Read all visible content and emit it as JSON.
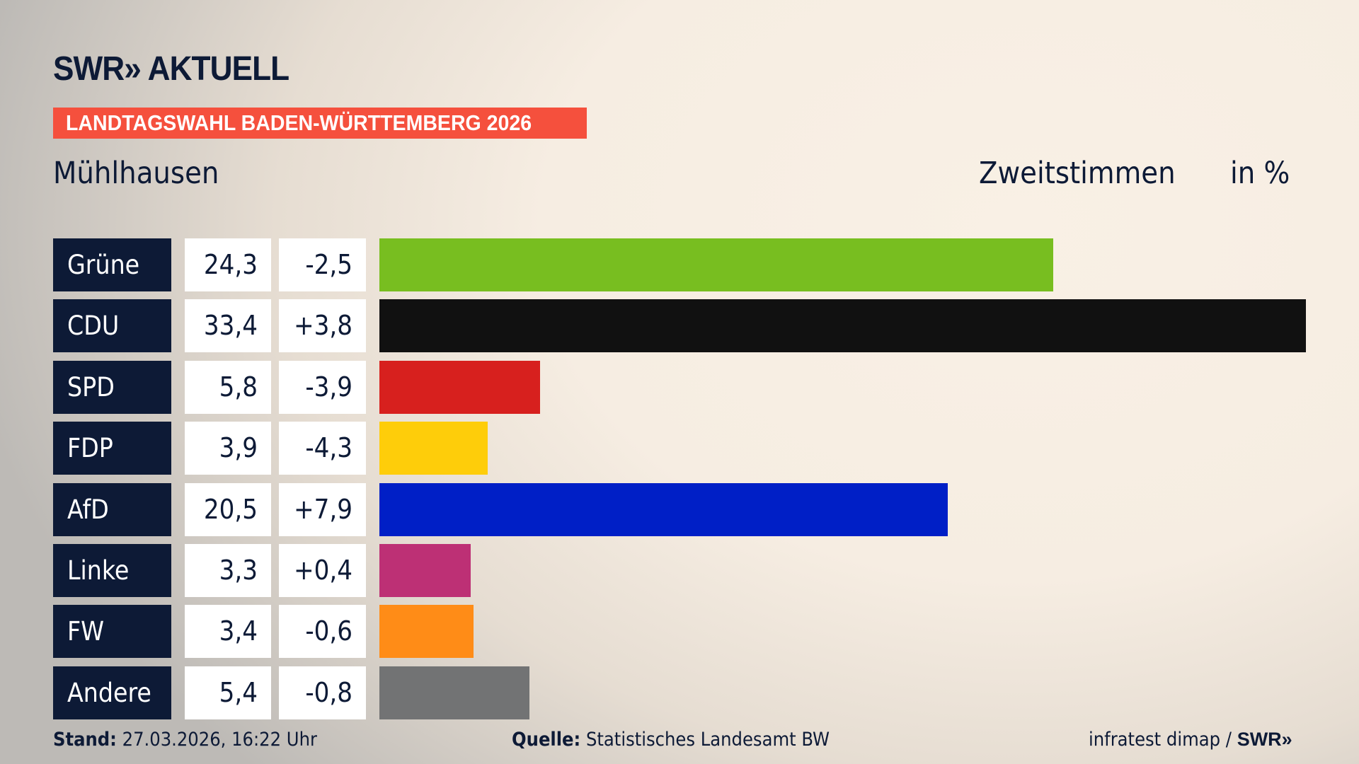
{
  "header": {
    "logo": "SWR» AKTUELL",
    "banner": "LANDTAGSWAHL BADEN-WÜRTTEMBERG 2026",
    "place": "Mühlhausen",
    "measure": "Zweitstimmen",
    "unit": "in %"
  },
  "chart_data": {
    "type": "bar",
    "orientation": "horizontal",
    "xlim": [
      0,
      33.4
    ],
    "categories": [
      "Grüne",
      "CDU",
      "SPD",
      "FDP",
      "AfD",
      "Linke",
      "FW",
      "Andere"
    ],
    "values": [
      24.3,
      33.4,
      5.8,
      3.9,
      20.5,
      3.3,
      3.4,
      5.4
    ],
    "value_labels": [
      "24,3",
      "33,4",
      "5,8",
      "3,9",
      "20,5",
      "3,3",
      "3,4",
      "5,4"
    ],
    "diff_labels": [
      "-2,5",
      "+3,8",
      "-3,9",
      "-4,3",
      "+7,9",
      "+0,4",
      "-0,6",
      "-0,8"
    ],
    "colors": [
      "#78be20",
      "#111111",
      "#d7201e",
      "#fecd0a",
      "#001fc6",
      "#bd3075",
      "#ff8c17",
      "#727374"
    ]
  },
  "footer": {
    "stand_label": "Stand:",
    "stand_value": "27.03.2026, 16:22 Uhr",
    "source_label": "Quelle:",
    "source_value": "Statistisches Landesamt BW",
    "credit": "infratest dimap /",
    "credit_logo": "SWR»"
  }
}
